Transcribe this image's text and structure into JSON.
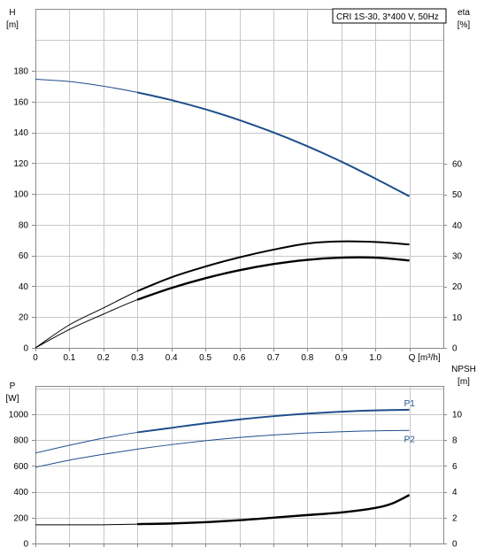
{
  "info_box": "CRI 1S-30, 3*400 V, 50Hz",
  "chart_data": [
    {
      "type": "line",
      "panel": "upper",
      "left_axis": {
        "label": "H",
        "unit": "[m]",
        "ylim": [
          0,
          200
        ],
        "ticks": [
          0,
          20,
          40,
          60,
          80,
          100,
          120,
          140,
          160,
          180
        ]
      },
      "right_axis": {
        "label": "eta",
        "unit": "[%]",
        "ylim": [
          0,
          100
        ],
        "ticks": [
          0,
          10,
          20,
          30,
          40,
          50,
          60
        ]
      },
      "x_axis": {
        "label": "Q [m³/h]",
        "xlim": [
          0,
          1.1
        ],
        "ticks": [
          "0",
          "0.1",
          "0.2",
          "0.3",
          "0.4",
          "0.5",
          "0.6",
          "0.7",
          "0.8",
          "0.9",
          "1.0"
        ]
      },
      "grid": true,
      "series": [
        {
          "axis": "left",
          "color": "#1f4e8c",
          "bold_from": 0.3,
          "x": [
            0,
            0.1,
            0.2,
            0.3,
            0.4,
            0.5,
            0.6,
            0.7,
            0.8,
            0.9,
            1.0,
            1.1
          ],
          "y": [
            174.5,
            173,
            170,
            166,
            161,
            155,
            148,
            140,
            131,
            121,
            110,
            98.5
          ]
        },
        {
          "axis": "right",
          "color": "#000000",
          "bold_from": 0.3,
          "x": [
            0,
            0.1,
            0.2,
            0.3,
            0.4,
            0.5,
            0.6,
            0.7,
            0.8,
            0.9,
            1.0,
            1.1
          ],
          "y": [
            0,
            7.5,
            13,
            18.5,
            23,
            26.5,
            29.5,
            32,
            34,
            34.7,
            34.5,
            33.7
          ]
        },
        {
          "axis": "right",
          "color": "#000000",
          "bold_from": 0.3,
          "bold": true,
          "x": [
            0,
            0.1,
            0.2,
            0.3,
            0.4,
            0.5,
            0.6,
            0.7,
            0.8,
            0.9,
            1.0,
            1.1
          ],
          "y": [
            0,
            6,
            11,
            15.7,
            19.5,
            22.7,
            25.3,
            27.3,
            28.7,
            29.4,
            29.4,
            28.5
          ]
        }
      ]
    },
    {
      "type": "line",
      "panel": "lower",
      "left_axis": {
        "label": "P",
        "unit": "[W]",
        "ylim": [
          0,
          1200
        ],
        "ticks": [
          0,
          200,
          400,
          600,
          800,
          1000
        ]
      },
      "right_axis": {
        "label": "NPSH",
        "unit": "[m]",
        "ylim": [
          0,
          12
        ],
        "ticks": [
          0,
          2,
          4,
          6,
          8,
          10
        ]
      },
      "x_axis": {
        "xlim": [
          0,
          1.1
        ]
      },
      "grid": true,
      "series": [
        {
          "name": "P1",
          "axis": "left",
          "color": "#1f4e8c",
          "bold_from": 0.3,
          "x": [
            0,
            0.1,
            0.2,
            0.3,
            0.4,
            0.5,
            0.6,
            0.7,
            0.8,
            0.9,
            1.0,
            1.1
          ],
          "y": [
            700,
            760,
            815,
            860,
            895,
            930,
            960,
            985,
            1005,
            1020,
            1030,
            1035
          ]
        },
        {
          "name": "P2",
          "axis": "left",
          "color": "#1f4e8c",
          "bold_from": 1.2,
          "x": [
            0,
            0.1,
            0.2,
            0.3,
            0.4,
            0.5,
            0.6,
            0.7,
            0.8,
            0.9,
            1.0,
            1.1
          ],
          "y": [
            590,
            645,
            690,
            730,
            765,
            795,
            820,
            840,
            855,
            865,
            872,
            875
          ]
        },
        {
          "axis": "right",
          "color": "#000000",
          "bold_from": 0.3,
          "bold": true,
          "x": [
            0,
            0.1,
            0.2,
            0.3,
            0.4,
            0.5,
            0.6,
            0.7,
            0.8,
            0.9,
            1.0,
            1.05,
            1.1
          ],
          "y": [
            1.45,
            1.45,
            1.45,
            1.5,
            1.55,
            1.65,
            1.8,
            2.0,
            2.2,
            2.4,
            2.75,
            3.1,
            3.75
          ]
        }
      ]
    }
  ]
}
